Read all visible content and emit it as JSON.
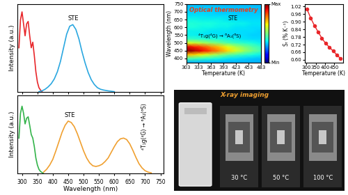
{
  "chart_data": [
    {
      "type": "line",
      "y_label": "Intensity (a.u.)",
      "xlim": [
        285,
        760
      ],
      "ylim": [
        0,
        1.1
      ],
      "xticks": [
        300,
        350,
        400,
        450,
        500,
        550,
        600,
        650,
        700,
        750
      ],
      "tick_labels": false,
      "annotations": [
        "STE"
      ],
      "series": [
        {
          "color": "#e8262a",
          "x": [
            290,
            295,
            300,
            305,
            310,
            315,
            320,
            325,
            330,
            335,
            340,
            345,
            350,
            355,
            360,
            365
          ],
          "values": [
            0.55,
            0.9,
            1.0,
            0.85,
            0.7,
            0.85,
            0.88,
            0.7,
            0.55,
            0.62,
            0.45,
            0.25,
            0.12,
            0.05,
            0.02,
            0.0
          ]
        },
        {
          "color": "#2aa7e0",
          "x": [
            355,
            365,
            375,
            385,
            395,
            405,
            415,
            425,
            435,
            445,
            455,
            465,
            475,
            485,
            495,
            505,
            515,
            525,
            535,
            545,
            555,
            565,
            580,
            600
          ],
          "values": [
            0.0,
            0.01,
            0.03,
            0.06,
            0.1,
            0.16,
            0.25,
            0.38,
            0.55,
            0.72,
            0.82,
            0.84,
            0.78,
            0.66,
            0.5,
            0.36,
            0.24,
            0.15,
            0.09,
            0.05,
            0.03,
            0.02,
            0.01,
            0.0
          ]
        }
      ]
    },
    {
      "type": "line",
      "x_label": "Wavelength (nm)",
      "y_label": "Intensity (a.u.)",
      "xlim": [
        285,
        760
      ],
      "ylim": [
        0,
        1.1
      ],
      "xticks": [
        300,
        350,
        400,
        450,
        500,
        550,
        600,
        650,
        700,
        750
      ],
      "tick_labels": "x",
      "annotations": [
        "STE",
        "⁴T₁g(⁴G) → ⁶A₁(⁶S)"
      ],
      "series": [
        {
          "color": "#33b44a",
          "x": [
            290,
            295,
            300,
            305,
            310,
            315,
            320,
            325,
            330,
            335,
            340,
            345,
            350,
            355,
            360,
            370
          ],
          "values": [
            0.5,
            0.85,
            0.95,
            0.85,
            0.7,
            0.78,
            0.8,
            0.68,
            0.55,
            0.5,
            0.38,
            0.22,
            0.12,
            0.06,
            0.03,
            0.0
          ]
        },
        {
          "color": "#f0a030",
          "x": [
            370,
            380,
            390,
            400,
            410,
            420,
            430,
            440,
            450,
            460,
            470,
            480,
            490,
            500,
            510,
            520,
            530,
            540,
            550,
            560,
            570,
            580,
            590,
            600,
            610,
            620,
            630,
            640,
            650,
            660,
            670,
            680,
            690,
            700,
            710,
            720
          ],
          "values": [
            0.02,
            0.06,
            0.12,
            0.2,
            0.32,
            0.45,
            0.58,
            0.68,
            0.74,
            0.72,
            0.66,
            0.56,
            0.44,
            0.32,
            0.22,
            0.15,
            0.11,
            0.1,
            0.11,
            0.13,
            0.17,
            0.22,
            0.3,
            0.38,
            0.45,
            0.49,
            0.5,
            0.48,
            0.42,
            0.33,
            0.23,
            0.14,
            0.08,
            0.04,
            0.02,
            0.01
          ]
        }
      ]
    },
    {
      "type": "heatmap",
      "title": "Optical thermometry",
      "x_label": "Temperature (K)",
      "y_label": "Wavelength (nm)",
      "annotations": [
        "STE",
        "⁴T₁g(⁴G) → ⁶A₁(⁶S)"
      ],
      "x": [
        303,
        323,
        343,
        363,
        383,
        403,
        423,
        443,
        463,
        483
      ],
      "y": [
        375,
        400,
        425,
        450,
        475,
        500,
        525,
        550,
        575,
        600,
        625,
        650,
        675,
        700,
        725,
        750
      ],
      "cells": [
        [
          0.3,
          0.3,
          0.3,
          0.3,
          0.3,
          0.3,
          0.3,
          0.3,
          0.3,
          0.3
        ],
        [
          0.45,
          0.43,
          0.41,
          0.39,
          0.37,
          0.35,
          0.34,
          0.33,
          0.32,
          0.31
        ],
        [
          0.72,
          0.68,
          0.63,
          0.58,
          0.53,
          0.48,
          0.44,
          0.41,
          0.38,
          0.36
        ],
        [
          1.0,
          0.96,
          0.9,
          0.83,
          0.76,
          0.68,
          0.61,
          0.54,
          0.48,
          0.43
        ],
        [
          0.92,
          0.88,
          0.83,
          0.76,
          0.7,
          0.63,
          0.56,
          0.5,
          0.45,
          0.41
        ],
        [
          0.62,
          0.6,
          0.56,
          0.52,
          0.49,
          0.45,
          0.42,
          0.4,
          0.38,
          0.36
        ],
        [
          0.42,
          0.41,
          0.4,
          0.39,
          0.38,
          0.37,
          0.36,
          0.35,
          0.34,
          0.34
        ],
        [
          0.36,
          0.36,
          0.35,
          0.35,
          0.35,
          0.34,
          0.34,
          0.34,
          0.33,
          0.33
        ],
        [
          0.36,
          0.36,
          0.36,
          0.35,
          0.35,
          0.35,
          0.34,
          0.34,
          0.34,
          0.33
        ],
        [
          0.38,
          0.38,
          0.37,
          0.37,
          0.36,
          0.36,
          0.35,
          0.35,
          0.34,
          0.34
        ],
        [
          0.39,
          0.39,
          0.38,
          0.38,
          0.37,
          0.37,
          0.36,
          0.36,
          0.35,
          0.35
        ],
        [
          0.37,
          0.37,
          0.36,
          0.36,
          0.36,
          0.35,
          0.35,
          0.34,
          0.34,
          0.34
        ],
        [
          0.35,
          0.35,
          0.35,
          0.34,
          0.34,
          0.34,
          0.33,
          0.33,
          0.33,
          0.33
        ],
        [
          0.33,
          0.33,
          0.33,
          0.33,
          0.32,
          0.32,
          0.32,
          0.32,
          0.32,
          0.32
        ],
        [
          0.32,
          0.32,
          0.32,
          0.32,
          0.32,
          0.31,
          0.31,
          0.31,
          0.31,
          0.31
        ],
        [
          0.31,
          0.31,
          0.31,
          0.31,
          0.31,
          0.31,
          0.31,
          0.31,
          0.31,
          0.31
        ]
      ],
      "xlim": [
        303,
        483
      ],
      "ylim": [
        375,
        750
      ],
      "xticks": [
        303,
        333,
        363,
        393,
        423,
        453,
        483
      ],
      "yticks": [
        400,
        450,
        500,
        550,
        600,
        650,
        700,
        750
      ],
      "colorbar": {
        "range": [
          0,
          1
        ],
        "ticks": [
          {
            "value": 0,
            "label": "Min"
          },
          {
            "value": 1,
            "label": "Max"
          }
        ]
      }
    },
    {
      "type": "line",
      "x_label": "Temperature (K)",
      "y_label": "Sᵣ (% K⁻¹)",
      "color": "#e8262a",
      "marker": "circle",
      "x": [
        303,
        323,
        343,
        363,
        383,
        403,
        423,
        443,
        463,
        483
      ],
      "values": [
        1.0,
        0.93,
        0.87,
        0.82,
        0.77,
        0.73,
        0.7,
        0.67,
        0.64,
        0.61
      ],
      "xlim": [
        290,
        495
      ],
      "ylim": [
        0.58,
        1.04
      ],
      "xticks": [
        300,
        350,
        400,
        450
      ],
      "yticks": [
        {
          "value": 0.6,
          "label": "0.60"
        },
        0.66,
        0.72,
        0.78,
        0.84,
        {
          "value": 0.9,
          "label": "0.90"
        },
        0.96,
        1.02
      ]
    }
  ],
  "xray_imaging": {
    "title": "X-ray imaging",
    "labels": [
      "30 °C",
      "50 °C",
      "100 °C"
    ]
  }
}
